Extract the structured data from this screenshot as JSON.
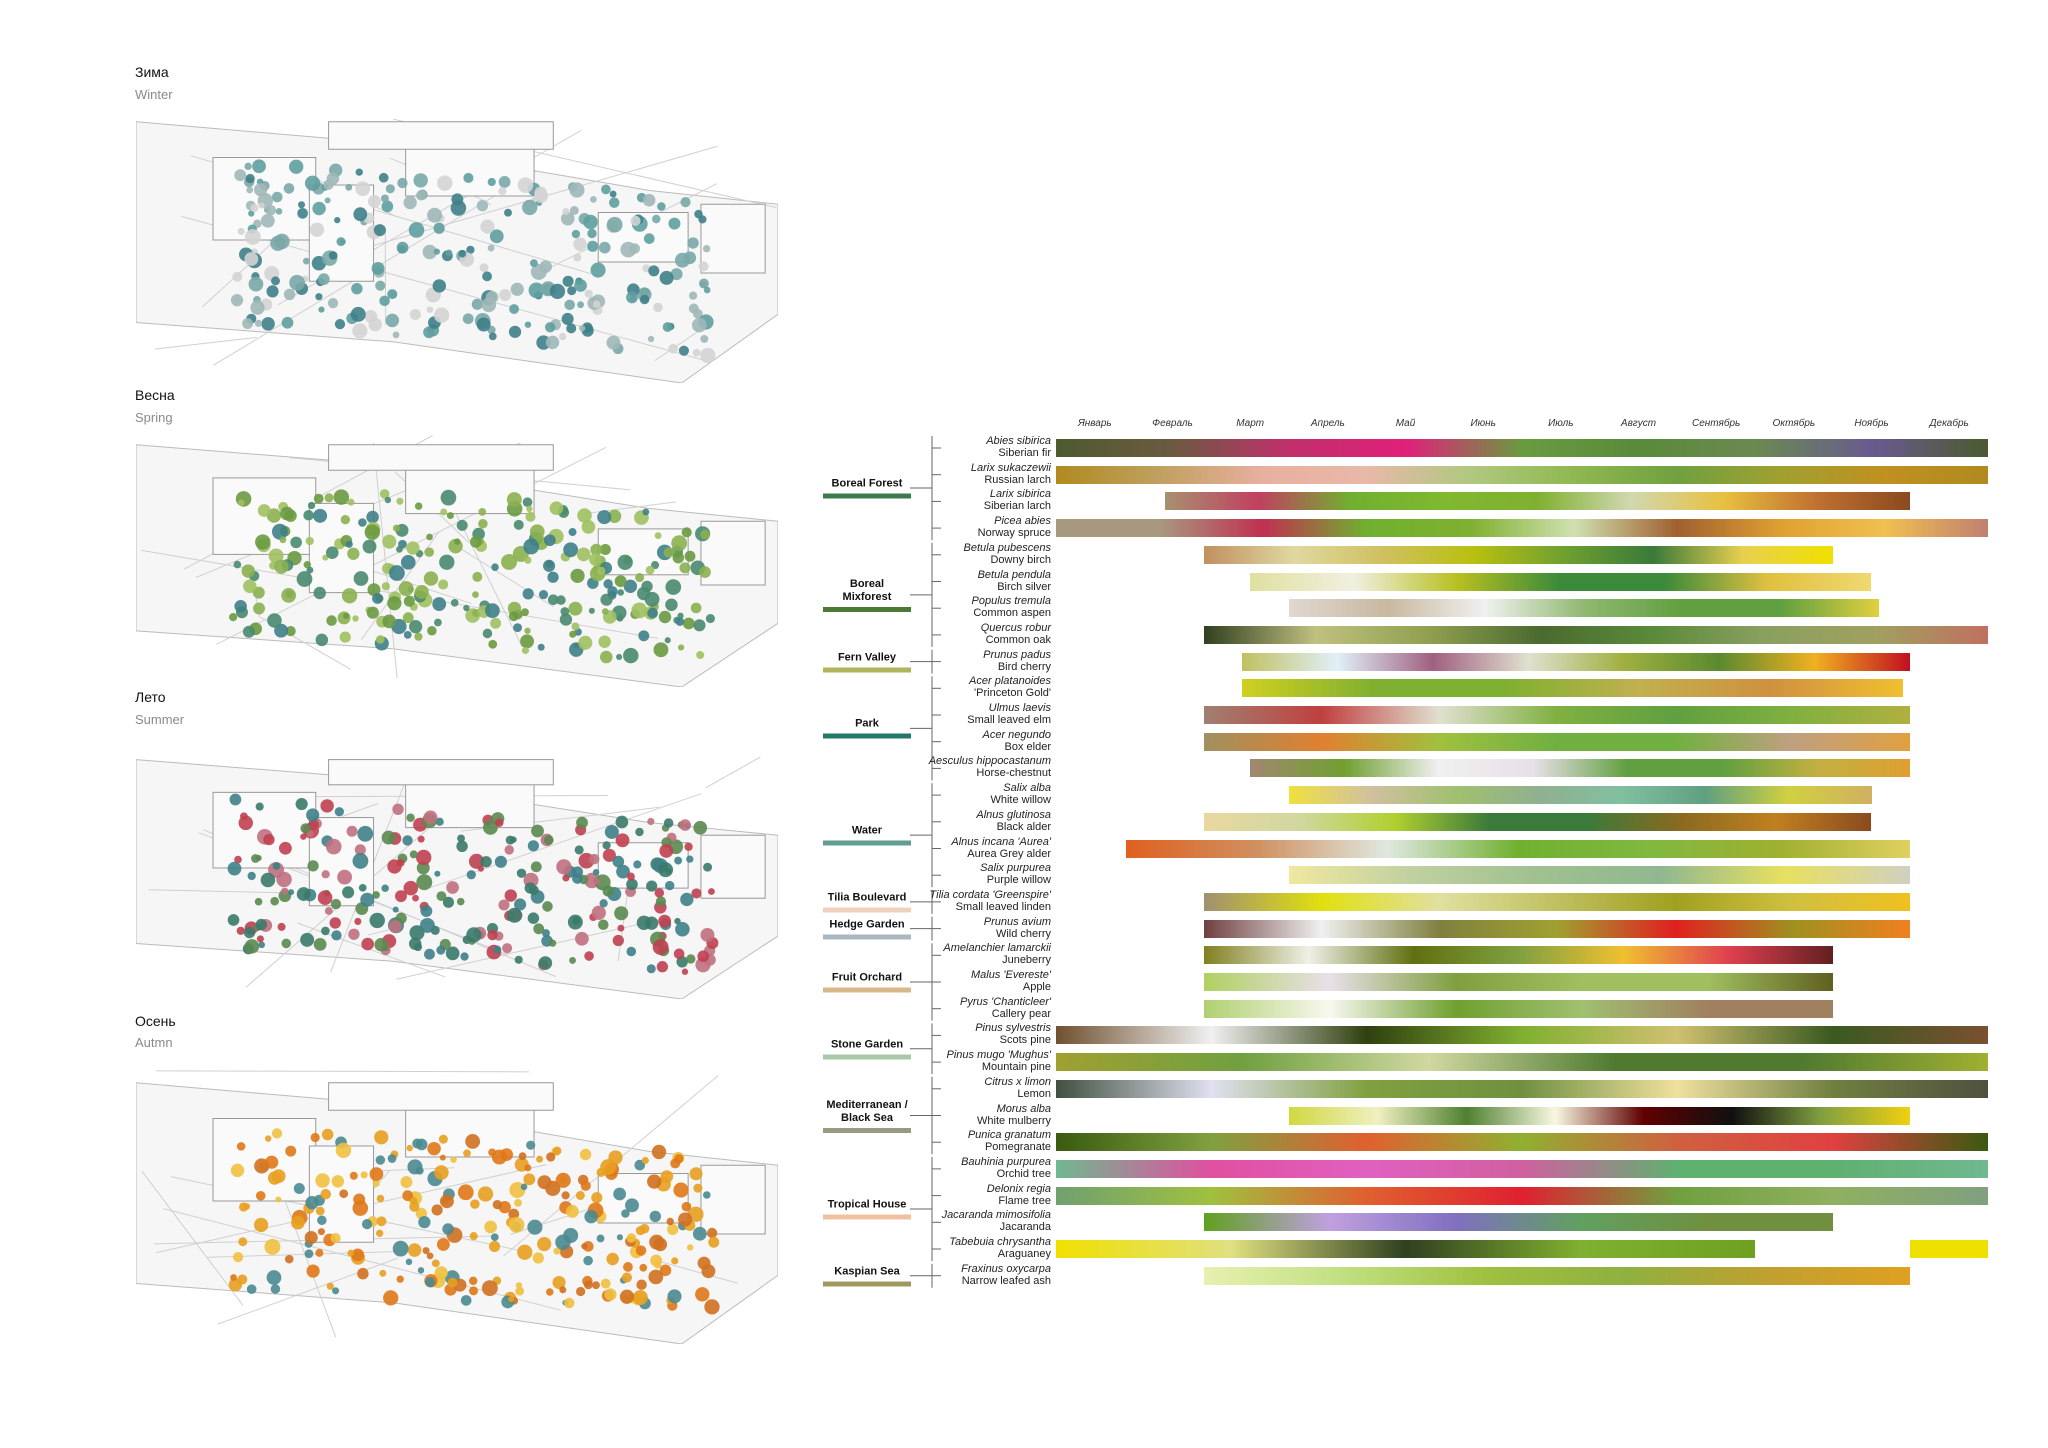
{
  "seasons": [
    {
      "ru": "Зима",
      "en": "Winter"
    },
    {
      "ru": "Весна",
      "en": "Spring"
    },
    {
      "ru": "Лето",
      "en": "Summer"
    },
    {
      "ru": "Осень",
      "en": "Autmn"
    }
  ],
  "chart_data": {
    "type": "phenology",
    "months": [
      "Январь",
      "Февраль",
      "Март",
      "Апрель",
      "Май",
      "Июнь",
      "Июль",
      "Август",
      "Сентябрь",
      "Октябрь",
      "Ноябрь",
      "Декабрь"
    ],
    "xlim": [
      0,
      12
    ],
    "groups": [
      {
        "name": "Boreal Forest",
        "color": "#3d7a4c",
        "species": [
          {
            "latin": "Abies sibirica",
            "common": "Siberian fir",
            "bars": [
              {
                "start": 0,
                "end": 12,
                "colors": [
                  "#4f5a30",
                  "#6b5a40",
                  "#c0306a",
                  "#e0207a",
                  "#6a9a40",
                  "#5a8a3a",
                  "#6a8a50",
                  "#6a5a90",
                  "#4a5a30"
                ]
              }
            ]
          },
          {
            "latin": "Larix sukaczewii",
            "common": "Russian larch",
            "bars": [
              {
                "start": 0,
                "end": 12,
                "colors": [
                  "#b08a20",
                  "#c0a060",
                  "#e8b0a0",
                  "#e8b8a8",
                  "#b0c880",
                  "#90b850",
                  "#70a040",
                  "#a0a030",
                  "#c09020",
                  "#b08a20"
                ]
              }
            ]
          },
          {
            "latin": "Larix sibirica",
            "common": "Siberian larch",
            "bars": [
              {
                "start": 1.4,
                "end": 11,
                "colors": [
                  "#a89070",
                  "#c04060",
                  "#70b030",
                  "#80b830",
                  "#80b030",
                  "#d0d8b0",
                  "#e8c040",
                  "#c07030",
                  "#8a4a20"
                ]
              }
            ]
          },
          {
            "latin": "Picea abies",
            "common": "Norway spruce",
            "bars": [
              {
                "start": 0,
                "end": 12,
                "colors": [
                  "#a89880",
                  "#a89880",
                  "#c03050",
                  "#70b030",
                  "#80b030",
                  "#d0e0b0",
                  "#a06030",
                  "#e0a030",
                  "#f0c050",
                  "#c08070"
                ]
              }
            ]
          }
        ]
      },
      {
        "name": "Boreal Mixforest",
        "color": "#4b7a34",
        "species": [
          {
            "latin": "Betula pubescens",
            "common": "Downy birch",
            "bars": [
              {
                "start": 1.9,
                "end": 10,
                "colors": [
                  "#c09060",
                  "#e0d8a0",
                  "#d0c060",
                  "#b8c010",
                  "#70a030",
                  "#3a7a3a",
                  "#e8d050",
                  "#f0e000"
                ]
              }
            ]
          },
          {
            "latin": "Betula pendula",
            "common": "Birch silver",
            "bars": [
              {
                "start": 2.5,
                "end": 10.5,
                "colors": [
                  "#e0e0a0",
                  "#f0f0e0",
                  "#b8c020",
                  "#3a8a3a",
                  "#3a8a3a",
                  "#e0c040",
                  "#f0d870"
                ]
              }
            ]
          },
          {
            "latin": "Populus tremula",
            "common": "Common aspen",
            "bars": [
              {
                "start": 3,
                "end": 10.6,
                "colors": [
                  "#e0d8d0",
                  "#c8b8a0",
                  "#f0f0f0",
                  "#90b870",
                  "#60a040",
                  "#60a040",
                  "#e0d040"
                ]
              }
            ]
          },
          {
            "latin": "Quercus robur",
            "common": "Common oak",
            "bars": [
              {
                "start": 1.9,
                "end": 12,
                "colors": [
                  "#304020",
                  "#c0c080",
                  "#90a050",
                  "#4a6a30",
                  "#5a8a3a",
                  "#8aa060",
                  "#a0a060",
                  "#c07060"
                ]
              }
            ]
          }
        ]
      },
      {
        "name": "Fern Valley",
        "color": "#b0b55c",
        "species": [
          {
            "latin": "Prunus padus",
            "common": "Bird cherry",
            "bars": [
              {
                "start": 2.4,
                "end": 11,
                "colors": [
                  "#c0c060",
                  "#e0f0f8",
                  "#a06080",
                  "#e0e0d0",
                  "#a0b040",
                  "#5a8a30",
                  "#f0b020",
                  "#c01020"
                ]
              }
            ]
          }
        ]
      },
      {
        "name": "Park",
        "color": "#23786a",
        "species": [
          {
            "latin": "Acer platanoides",
            "common": "'Princeton Gold'",
            "bars": [
              {
                "start": 2.4,
                "end": 10.9,
                "colors": [
                  "#d0d020",
                  "#80b030",
                  "#80b030",
                  "#c0b050",
                  "#d09040",
                  "#f0c030"
                ]
              }
            ]
          },
          {
            "latin": "Ulmus laevis",
            "common": "Small leaved elm",
            "bars": [
              {
                "start": 1.9,
                "end": 11,
                "colors": [
                  "#a08070",
                  "#c04040",
                  "#e0e0d0",
                  "#80b040",
                  "#60a040",
                  "#80b040",
                  "#b0b040"
                ]
              }
            ]
          },
          {
            "latin": "Acer negundo",
            "common": "Box elder",
            "bars": [
              {
                "start": 1.9,
                "end": 11,
                "colors": [
                  "#a09060",
                  "#e08030",
                  "#a0c040",
                  "#70b040",
                  "#70b040",
                  "#c0a080",
                  "#e0a040"
                ]
              }
            ]
          },
          {
            "latin": "Aesculus hippocastanum",
            "common": "Horse-chestnut",
            "bars": [
              {
                "start": 2.5,
                "end": 11,
                "colors": [
                  "#a08870",
                  "#70a030",
                  "#f0f0f0",
                  "#e8e0e8",
                  "#60a040",
                  "#60a040",
                  "#c0b040",
                  "#e0a030"
                ]
              }
            ]
          }
        ]
      },
      {
        "name": "Water",
        "color": "#5f9e90",
        "species": [
          {
            "latin": "Salix alba",
            "common": "White willow",
            "bars": [
              {
                "start": 3,
                "end": 10.5,
                "colors": [
                  "#f0e040",
                  "#d0c0a0",
                  "#a0c070",
                  "#90b090",
                  "#80c0a0",
                  "#60a080",
                  "#d0d040",
                  "#d0b060"
                ]
              }
            ]
          },
          {
            "latin": "Alnus glutinosa",
            "common": "Black alder",
            "bars": [
              {
                "start": 1.9,
                "end": 10.5,
                "colors": [
                  "#e8d8a0",
                  "#d0d8a0",
                  "#b0d030",
                  "#3a7a3a",
                  "#3a7a3a",
                  "#8a6a20",
                  "#c08020",
                  "#8a4a20"
                ]
              }
            ]
          },
          {
            "latin": "Alnus incana 'Aurea'",
            "common": "Aurea Grey alder",
            "bars": [
              {
                "start": 0.9,
                "end": 11,
                "colors": [
                  "#e06020",
                  "#d09060",
                  "#e0e8e0",
                  "#70b030",
                  "#80b840",
                  "#a0b030",
                  "#e0d060"
                ]
              }
            ]
          },
          {
            "latin": "Salix purpurea",
            "common": "Purple willow",
            "bars": [
              {
                "start": 3,
                "end": 11,
                "colors": [
                  "#f0e8a0",
                  "#c0d0a0",
                  "#a0c090",
                  "#90b890",
                  "#e8e060",
                  "#d0d0c0"
                ]
              }
            ]
          }
        ]
      },
      {
        "name": "Tilia Boulevard",
        "color": "#f0d2bc",
        "species": [
          {
            "latin": "Tilia cordata 'Greenspire'",
            "common": "Small leaved linden",
            "bars": [
              {
                "start": 1.9,
                "end": 11,
                "colors": [
                  "#a09070",
                  "#e0e010",
                  "#e0e0a0",
                  "#c0c060",
                  "#a0a020",
                  "#d0c040",
                  "#f0c020"
                ]
              }
            ]
          }
        ]
      },
      {
        "name": "Hedge Garden",
        "color": "#a8b8c0",
        "species": [
          {
            "latin": "Prunus avium",
            "common": "Wild cherry",
            "bars": [
              {
                "start": 1.9,
                "end": 11,
                "colors": [
                  "#704040",
                  "#f0f0f0",
                  "#808040",
                  "#a0a030",
                  "#e02020",
                  "#a09020",
                  "#f08020"
                ]
              }
            ]
          }
        ]
      },
      {
        "name": "Fruit Orchard",
        "color": "#d8b888",
        "species": [
          {
            "latin": "Amelanchier lamarckii",
            "common": "Juneberry",
            "bars": [
              {
                "start": 1.9,
                "end": 10,
                "colors": [
                  "#808020",
                  "#f0f0e8",
                  "#607010",
                  "#80a040",
                  "#f0c030",
                  "#e04050",
                  "#602020"
                ]
              }
            ]
          },
          {
            "latin": "Malus 'Evereste'",
            "common": "Apple",
            "bars": [
              {
                "start": 1.9,
                "end": 10,
                "colors": [
                  "#b0d060",
                  "#e8e0e8",
                  "#80a040",
                  "#a0c060",
                  "#a0c060",
                  "#606020"
                ]
              }
            ]
          },
          {
            "latin": "Pyrus 'Chanticleer'",
            "common": "Callery pear",
            "bars": [
              {
                "start": 1.9,
                "end": 10,
                "colors": [
                  "#b0d070",
                  "#f8f8f0",
                  "#70a030",
                  "#a0c070",
                  "#a08060",
                  "#a08060"
                ]
              }
            ]
          }
        ]
      },
      {
        "name": "Stone Garden",
        "color": "#a8c8a8",
        "species": [
          {
            "latin": "Pinus sylvestris",
            "common": "Scots pine",
            "bars": [
              {
                "start": 0,
                "end": 12,
                "colors": [
                  "#705030",
                  "#f0f0f0",
                  "#304010",
                  "#80b030",
                  "#d0c070",
                  "#3a5a20",
                  "#7a5030"
                ]
              }
            ]
          },
          {
            "latin": "Pinus mugo 'Mughus'",
            "common": "Mountain pine",
            "bars": [
              {
                "start": 0,
                "end": 12,
                "colors": [
                  "#a0a030",
                  "#70a040",
                  "#d0d8a0",
                  "#507a30",
                  "#507a30",
                  "#a0b030"
                ]
              }
            ]
          }
        ]
      },
      {
        "name": "Mediterranean / Black Sea",
        "color": "#9a9a80",
        "species": [
          {
            "latin": "Citrus x limon",
            "common": "Lemon",
            "bars": [
              {
                "start": 0,
                "end": 12,
                "colors": [
                  "#405040",
                  "#e0e0f0",
                  "#80a040",
                  "#709040",
                  "#f0e0a0",
                  "#708040",
                  "#505040"
                ]
              }
            ]
          },
          {
            "latin": "Morus alba",
            "common": "White mulberry",
            "bars": [
              {
                "start": 3,
                "end": 11,
                "colors": [
                  "#d0d840",
                  "#f0f0c0",
                  "#508030",
                  "#f8f8e0",
                  "#600000",
                  "#101010",
                  "#80a040",
                  "#f0d010"
                ]
              }
            ]
          },
          {
            "latin": "Punica granatum",
            "common": "Pomegranate",
            "bars": [
              {
                "start": 0,
                "end": 12,
                "colors": [
                  "#3a5a10",
                  "#80a040",
                  "#e06030",
                  "#90b030",
                  "#d06040",
                  "#e04040",
                  "#3a5a10"
                ]
              }
            ]
          }
        ]
      },
      {
        "name": "Tropical House",
        "color": "#f0c0a0",
        "species": [
          {
            "latin": "Bauhinia purpurea",
            "common": "Orchid tree",
            "bars": [
              {
                "start": 0,
                "end": 12,
                "colors": [
                  "#70b890",
                  "#e050a0",
                  "#e060c0",
                  "#d060a0",
                  "#60b070",
                  "#60b070",
                  "#70b890"
                ]
              }
            ]
          },
          {
            "latin": "Delonix regia",
            "common": "Flame tree",
            "bars": [
              {
                "start": 0,
                "end": 12,
                "colors": [
                  "#70a070",
                  "#a0c040",
                  "#e06030",
                  "#e02030",
                  "#70a040",
                  "#90b060",
                  "#80a080"
                ]
              }
            ]
          },
          {
            "latin": "Jacaranda mimosifolia",
            "common": "Jacaranda",
            "bars": [
              {
                "start": 1.9,
                "end": 10,
                "colors": [
                  "#60a020",
                  "#c0a0e0",
                  "#8070c0",
                  "#60a060",
                  "#709040",
                  "#709040"
                ]
              }
            ]
          },
          {
            "latin": "Tabebuia chrysantha",
            "common": "Araguaney",
            "bars": [
              {
                "start": 0,
                "end": 9,
                "colors": [
                  "#f0e000",
                  "#e0e080",
                  "#304020",
                  "#80b030",
                  "#70a020"
                ]
              },
              {
                "start": 11,
                "end": 12,
                "colors": [
                  "#f0e000",
                  "#f0e000"
                ]
              }
            ]
          }
        ]
      },
      {
        "name": "Kaspian Sea",
        "color": "#a09860",
        "species": [
          {
            "latin": "Fraxinus oxycarpa",
            "common": "Narrow leafed ash",
            "bars": [
              {
                "start": 1.9,
                "end": 11,
                "colors": [
                  "#e8f0b0",
                  "#c0e080",
                  "#a0c040",
                  "#90b040",
                  "#c0a030",
                  "#e0a020"
                ]
              }
            ]
          }
        ]
      }
    ]
  }
}
